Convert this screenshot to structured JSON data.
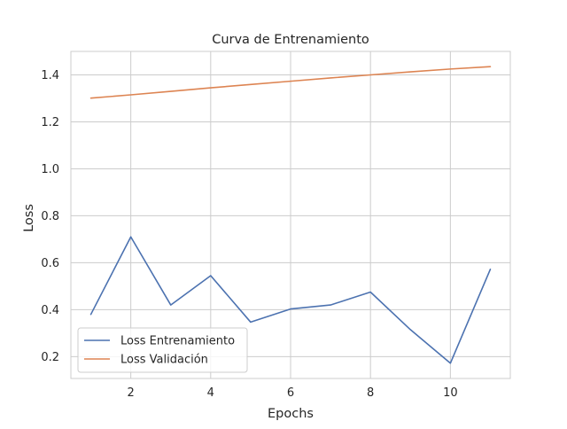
{
  "chart_data": {
    "type": "line",
    "title": "Curva de Entrenamiento",
    "xlabel": "Epochs",
    "ylabel": "Loss",
    "x": [
      1,
      2,
      3,
      4,
      5,
      6,
      7,
      8,
      9,
      10,
      11
    ],
    "series": [
      {
        "name": "Loss Entrenamiento",
        "color": "#4c72b0",
        "values": [
          0.38,
          0.71,
          0.42,
          0.545,
          0.347,
          0.403,
          0.42,
          0.475,
          0.315,
          0.172,
          0.572
        ]
      },
      {
        "name": "Loss Validación",
        "color": "#dd8452",
        "values": [
          1.301,
          1.315,
          1.33,
          1.345,
          1.359,
          1.373,
          1.387,
          1.4,
          1.413,
          1.425,
          1.435
        ]
      }
    ],
    "xlim": [
      0.5,
      11.5
    ],
    "ylim": [
      0.107,
      1.5
    ],
    "xticks": [
      2,
      4,
      6,
      8,
      10
    ],
    "xtick_labels": [
      "2",
      "4",
      "6",
      "8",
      "10"
    ],
    "yticks": [
      0.2,
      0.4,
      0.6,
      0.8,
      1.0,
      1.2,
      1.4
    ],
    "ytick_labels": [
      "0.2",
      "0.4",
      "0.6",
      "0.8",
      "1.0",
      "1.2",
      "1.4"
    ],
    "grid": true,
    "legend_position": "lower-left"
  }
}
